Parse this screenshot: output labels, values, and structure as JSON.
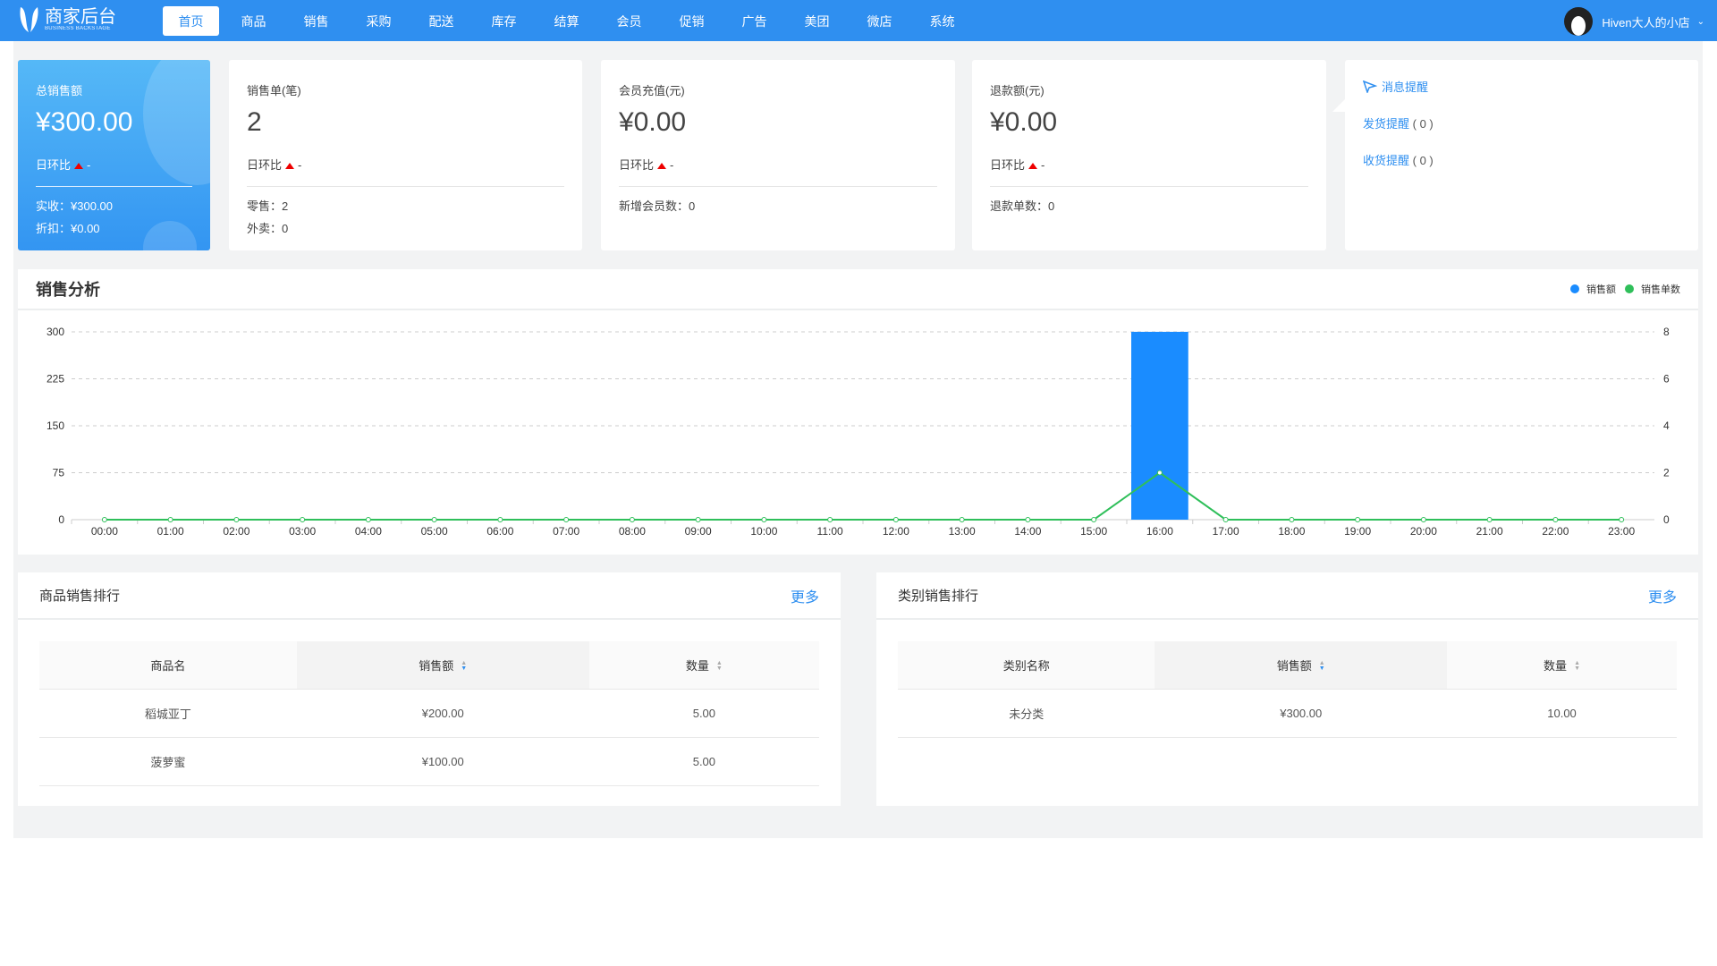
{
  "header": {
    "logo_title": "商家后台",
    "logo_subtitle": "BUSINESS BACKSTAGE",
    "nav": [
      "首页",
      "商品",
      "销售",
      "采购",
      "配送",
      "库存",
      "结算",
      "会员",
      "促销",
      "广告",
      "美团",
      "微店",
      "系统"
    ],
    "active_nav": "首页",
    "user_name": "Hiven大人的小店"
  },
  "cards": [
    {
      "label": "总销售额",
      "value": "¥300.00",
      "compare": "日环比",
      "compare_value": "-",
      "subs": [
        "实收：¥300.00",
        "折扣：¥0.00"
      ]
    },
    {
      "label": "销售单(笔)",
      "value": "2",
      "compare": "日环比",
      "compare_value": "-",
      "subs": [
        "零售：2",
        "外卖：0"
      ]
    },
    {
      "label": "会员充值(元)",
      "value": "¥0.00",
      "compare": "日环比",
      "compare_value": "-",
      "subs": [
        "新增会员数：0"
      ]
    },
    {
      "label": "退款额(元)",
      "value": "¥0.00",
      "compare": "日环比",
      "compare_value": "-",
      "subs": [
        "退款单数：0"
      ]
    }
  ],
  "messages": {
    "title": "消息提醒",
    "items": [
      {
        "label": "发货提醒",
        "count": "( 0 )"
      },
      {
        "label": "收货提醒",
        "count": "( 0 )"
      }
    ]
  },
  "chart_data": {
    "type": "bar+line",
    "title": "销售分析",
    "categories": [
      "00:00",
      "01:00",
      "02:00",
      "03:00",
      "04:00",
      "05:00",
      "06:00",
      "07:00",
      "08:00",
      "09:00",
      "10:00",
      "11:00",
      "12:00",
      "13:00",
      "14:00",
      "15:00",
      "16:00",
      "17:00",
      "18:00",
      "19:00",
      "20:00",
      "21:00",
      "22:00",
      "23:00"
    ],
    "series": [
      {
        "name": "销售额",
        "type": "bar",
        "axis": "left",
        "color": "#1a8cff",
        "values": [
          0,
          0,
          0,
          0,
          0,
          0,
          0,
          0,
          0,
          0,
          0,
          0,
          0,
          0,
          0,
          0,
          300,
          0,
          0,
          0,
          0,
          0,
          0,
          0
        ]
      },
      {
        "name": "销售单数",
        "type": "line",
        "axis": "right",
        "color": "#2fbf5a",
        "values": [
          0,
          0,
          0,
          0,
          0,
          0,
          0,
          0,
          0,
          0,
          0,
          0,
          0,
          0,
          0,
          0,
          2,
          0,
          0,
          0,
          0,
          0,
          0,
          0
        ]
      }
    ],
    "y_left": {
      "ticks": [
        "0",
        "75",
        "150",
        "225",
        "300"
      ],
      "range": [
        0,
        300
      ]
    },
    "y_right": {
      "ticks": [
        "0",
        "2",
        "4",
        "6",
        "8"
      ],
      "range": [
        0,
        8
      ]
    },
    "grid": "dashed-horizontal",
    "legend": "top-right"
  },
  "product_rank": {
    "title": "商品销售排行",
    "more": "更多",
    "columns": [
      "商品名",
      "销售额",
      "数量"
    ],
    "rows": [
      [
        "稻城亚丁",
        "¥200.00",
        "5.00"
      ],
      [
        "菠萝蜜",
        "¥100.00",
        "5.00"
      ]
    ]
  },
  "category_rank": {
    "title": "类别销售排行",
    "more": "更多",
    "columns": [
      "类别名称",
      "销售额",
      "数量"
    ],
    "rows": [
      [
        "未分类",
        "¥300.00",
        "10.00"
      ]
    ]
  }
}
